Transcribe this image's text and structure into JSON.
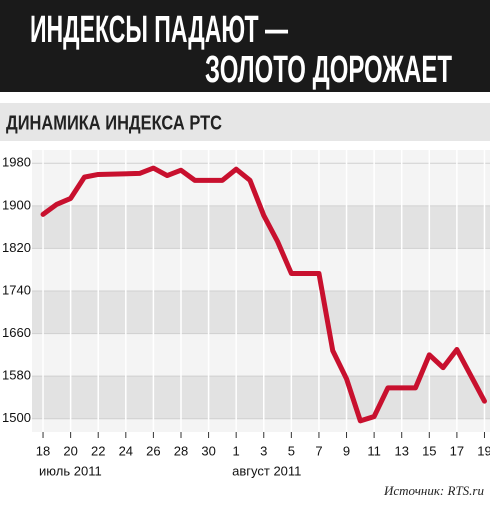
{
  "chart_data": {
    "type": "line",
    "title": [
      "ИНДЕКСЫ ПАДАЮТ —",
      "ЗОЛОТО ДОРОЖАЕТ"
    ],
    "subtitle": "ДИНАМИКА ИНДЕКСА РТС",
    "source": "Источник: RTS.ru",
    "color": "#c8102e",
    "x": [
      18,
      19,
      20,
      21,
      22,
      25,
      26,
      27,
      28,
      29,
      31,
      32,
      33,
      34,
      35,
      36,
      38,
      39,
      40,
      41,
      42,
      43,
      45,
      46,
      47,
      48,
      50
    ],
    "values": [
      1884,
      1903,
      1914,
      1954,
      1959,
      1961,
      1971,
      1957,
      1967,
      1948,
      1948,
      1969,
      1948,
      1882,
      1833,
      1773,
      1773,
      1628,
      1575,
      1496,
      1504,
      1558,
      1558,
      1620,
      1596,
      1630,
      1533
    ],
    "xlim": [
      17.2,
      50.4
    ],
    "xticks": [
      18,
      20,
      22,
      24,
      26,
      28,
      30,
      {
        "value": 32,
        "label": "1"
      },
      {
        "value": 34,
        "label": "3"
      },
      {
        "value": 36,
        "label": "5"
      },
      {
        "value": 38,
        "label": "7"
      },
      {
        "value": 40,
        "label": "9"
      },
      {
        "value": 42,
        "label": "11"
      },
      {
        "value": 44,
        "label": "13"
      },
      {
        "value": 46,
        "label": "15"
      },
      {
        "value": 48,
        "label": "17"
      },
      {
        "value": 50,
        "label": "19"
      }
    ],
    "x_groups": [
      {
        "label": "июль 2011",
        "start": 18
      },
      {
        "label": "август 2011",
        "start": 32
      }
    ],
    "ylim": [
      1475,
      2005
    ],
    "yticks": [
      1500,
      1580,
      1660,
      1740,
      1820,
      1900,
      1980
    ],
    "grid": true
  }
}
